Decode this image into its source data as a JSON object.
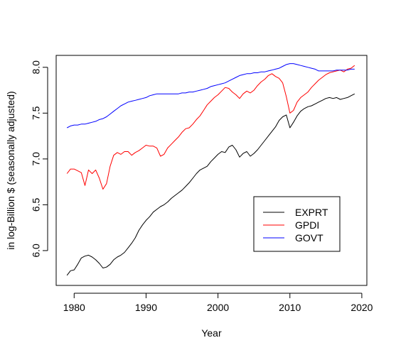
{
  "chart_data": {
    "type": "line",
    "xlabel": "Year",
    "ylabel": "in log-Billion $ (seasonally adjusted)",
    "xlim": [
      1977.5,
      2020.7
    ],
    "ylim": [
      5.62,
      8.13
    ],
    "x_ticks": [
      1980,
      1990,
      2000,
      2010,
      2020
    ],
    "y_ticks": [
      6.0,
      6.5,
      7.0,
      7.5,
      8.0
    ],
    "x_tick_labels": [
      "1980",
      "1990",
      "2000",
      "2010",
      "2020"
    ],
    "y_tick_labels": [
      "6.0",
      "6.5",
      "7.0",
      "7.5",
      "8.0"
    ],
    "grid": false,
    "legend_position": "bottom-right",
    "series": [
      {
        "name": "EXPRT",
        "color": "#000000",
        "points": [
          [
            1979.0,
            5.73
          ],
          [
            1979.5,
            5.78
          ],
          [
            1980.0,
            5.79
          ],
          [
            1980.5,
            5.85
          ],
          [
            1981.0,
            5.92
          ],
          [
            1981.5,
            5.94
          ],
          [
            1982.0,
            5.95
          ],
          [
            1982.5,
            5.93
          ],
          [
            1983.0,
            5.9
          ],
          [
            1983.5,
            5.86
          ],
          [
            1984.0,
            5.81
          ],
          [
            1984.5,
            5.82
          ],
          [
            1985.0,
            5.85
          ],
          [
            1985.5,
            5.9
          ],
          [
            1986.0,
            5.93
          ],
          [
            1986.5,
            5.95
          ],
          [
            1987.0,
            5.98
          ],
          [
            1987.5,
            6.03
          ],
          [
            1988.0,
            6.08
          ],
          [
            1988.5,
            6.14
          ],
          [
            1989.0,
            6.22
          ],
          [
            1989.5,
            6.28
          ],
          [
            1990.0,
            6.33
          ],
          [
            1990.5,
            6.37
          ],
          [
            1991.0,
            6.42
          ],
          [
            1991.5,
            6.45
          ],
          [
            1992.0,
            6.48
          ],
          [
            1992.5,
            6.5
          ],
          [
            1993.0,
            6.53
          ],
          [
            1993.5,
            6.57
          ],
          [
            1994.0,
            6.6
          ],
          [
            1994.5,
            6.63
          ],
          [
            1995.0,
            6.66
          ],
          [
            1995.5,
            6.7
          ],
          [
            1996.0,
            6.74
          ],
          [
            1996.5,
            6.79
          ],
          [
            1997.0,
            6.84
          ],
          [
            1997.5,
            6.88
          ],
          [
            1998.0,
            6.9
          ],
          [
            1998.5,
            6.92
          ],
          [
            1999.0,
            6.97
          ],
          [
            1999.5,
            7.01
          ],
          [
            2000.0,
            7.05
          ],
          [
            2000.5,
            7.08
          ],
          [
            2001.0,
            7.07
          ],
          [
            2001.5,
            7.13
          ],
          [
            2002.0,
            7.15
          ],
          [
            2002.5,
            7.1
          ],
          [
            2003.0,
            7.02
          ],
          [
            2003.5,
            7.06
          ],
          [
            2004.0,
            7.08
          ],
          [
            2004.5,
            7.03
          ],
          [
            2005.0,
            7.06
          ],
          [
            2005.5,
            7.1
          ],
          [
            2006.0,
            7.15
          ],
          [
            2006.5,
            7.2
          ],
          [
            2007.0,
            7.25
          ],
          [
            2007.5,
            7.3
          ],
          [
            2008.0,
            7.35
          ],
          [
            2008.5,
            7.42
          ],
          [
            2009.0,
            7.46
          ],
          [
            2009.5,
            7.48
          ],
          [
            2010.0,
            7.34
          ],
          [
            2010.5,
            7.4
          ],
          [
            2011.0,
            7.47
          ],
          [
            2011.5,
            7.52
          ],
          [
            2012.0,
            7.55
          ],
          [
            2012.5,
            7.57
          ],
          [
            2013.0,
            7.58
          ],
          [
            2013.5,
            7.6
          ],
          [
            2014.0,
            7.62
          ],
          [
            2014.5,
            7.64
          ],
          [
            2015.0,
            7.66
          ],
          [
            2015.5,
            7.67
          ],
          [
            2016.0,
            7.66
          ],
          [
            2016.5,
            7.67
          ],
          [
            2017.0,
            7.65
          ],
          [
            2017.5,
            7.66
          ],
          [
            2018.0,
            7.67
          ],
          [
            2018.5,
            7.69
          ],
          [
            2019.0,
            7.71
          ]
        ]
      },
      {
        "name": "GPDI",
        "color": "#ff0000",
        "points": [
          [
            1979.0,
            6.84
          ],
          [
            1979.5,
            6.89
          ],
          [
            1980.0,
            6.89
          ],
          [
            1980.5,
            6.87
          ],
          [
            1981.0,
            6.85
          ],
          [
            1981.5,
            6.71
          ],
          [
            1982.0,
            6.88
          ],
          [
            1982.5,
            6.84
          ],
          [
            1983.0,
            6.88
          ],
          [
            1983.5,
            6.79
          ],
          [
            1984.0,
            6.67
          ],
          [
            1984.5,
            6.73
          ],
          [
            1985.0,
            6.92
          ],
          [
            1985.5,
            7.04
          ],
          [
            1986.0,
            7.07
          ],
          [
            1986.5,
            7.05
          ],
          [
            1987.0,
            7.08
          ],
          [
            1987.5,
            7.08
          ],
          [
            1988.0,
            7.04
          ],
          [
            1988.5,
            7.07
          ],
          [
            1989.0,
            7.09
          ],
          [
            1989.5,
            7.12
          ],
          [
            1990.0,
            7.15
          ],
          [
            1990.5,
            7.14
          ],
          [
            1991.0,
            7.14
          ],
          [
            1991.5,
            7.12
          ],
          [
            1992.0,
            7.03
          ],
          [
            1992.5,
            7.05
          ],
          [
            1993.0,
            7.12
          ],
          [
            1993.5,
            7.16
          ],
          [
            1994.0,
            7.2
          ],
          [
            1994.5,
            7.24
          ],
          [
            1995.0,
            7.29
          ],
          [
            1995.5,
            7.33
          ],
          [
            1996.0,
            7.34
          ],
          [
            1996.5,
            7.38
          ],
          [
            1997.0,
            7.43
          ],
          [
            1997.5,
            7.47
          ],
          [
            1998.0,
            7.53
          ],
          [
            1998.5,
            7.59
          ],
          [
            1999.0,
            7.63
          ],
          [
            1999.5,
            7.67
          ],
          [
            2000.0,
            7.7
          ],
          [
            2000.5,
            7.74
          ],
          [
            2001.0,
            7.78
          ],
          [
            2001.5,
            7.77
          ],
          [
            2002.0,
            7.73
          ],
          [
            2002.5,
            7.7
          ],
          [
            2003.0,
            7.66
          ],
          [
            2003.5,
            7.71
          ],
          [
            2004.0,
            7.74
          ],
          [
            2004.5,
            7.72
          ],
          [
            2005.0,
            7.75
          ],
          [
            2005.5,
            7.8
          ],
          [
            2006.0,
            7.84
          ],
          [
            2006.5,
            7.87
          ],
          [
            2007.0,
            7.91
          ],
          [
            2007.5,
            7.93
          ],
          [
            2008.0,
            7.9
          ],
          [
            2008.5,
            7.88
          ],
          [
            2009.0,
            7.83
          ],
          [
            2009.5,
            7.68
          ],
          [
            2010.0,
            7.5
          ],
          [
            2010.5,
            7.53
          ],
          [
            2011.0,
            7.62
          ],
          [
            2011.5,
            7.67
          ],
          [
            2012.0,
            7.7
          ],
          [
            2012.5,
            7.73
          ],
          [
            2013.0,
            7.78
          ],
          [
            2013.5,
            7.82
          ],
          [
            2014.0,
            7.86
          ],
          [
            2014.5,
            7.89
          ],
          [
            2015.0,
            7.92
          ],
          [
            2015.5,
            7.94
          ],
          [
            2016.0,
            7.95
          ],
          [
            2016.5,
            7.96
          ],
          [
            2017.0,
            7.97
          ],
          [
            2017.5,
            7.95
          ],
          [
            2018.0,
            7.98
          ],
          [
            2018.5,
            7.99
          ],
          [
            2019.0,
            8.02
          ]
        ]
      },
      {
        "name": "GOVT",
        "color": "#0000ff",
        "points": [
          [
            1979.0,
            7.34
          ],
          [
            1979.5,
            7.36
          ],
          [
            1980.0,
            7.37
          ],
          [
            1980.5,
            7.37
          ],
          [
            1981.0,
            7.38
          ],
          [
            1981.5,
            7.38
          ],
          [
            1982.0,
            7.39
          ],
          [
            1982.5,
            7.4
          ],
          [
            1983.0,
            7.41
          ],
          [
            1983.5,
            7.43
          ],
          [
            1984.0,
            7.44
          ],
          [
            1984.5,
            7.46
          ],
          [
            1985.0,
            7.49
          ],
          [
            1985.5,
            7.52
          ],
          [
            1986.0,
            7.55
          ],
          [
            1986.5,
            7.58
          ],
          [
            1987.0,
            7.6
          ],
          [
            1987.5,
            7.62
          ],
          [
            1988.0,
            7.63
          ],
          [
            1988.5,
            7.64
          ],
          [
            1989.0,
            7.65
          ],
          [
            1989.5,
            7.66
          ],
          [
            1990.0,
            7.67
          ],
          [
            1990.5,
            7.69
          ],
          [
            1991.0,
            7.7
          ],
          [
            1991.5,
            7.71
          ],
          [
            1992.0,
            7.71
          ],
          [
            1992.5,
            7.71
          ],
          [
            1993.0,
            7.71
          ],
          [
            1993.5,
            7.71
          ],
          [
            1994.0,
            7.71
          ],
          [
            1994.5,
            7.71
          ],
          [
            1995.0,
            7.72
          ],
          [
            1995.5,
            7.72
          ],
          [
            1996.0,
            7.73
          ],
          [
            1996.5,
            7.73
          ],
          [
            1997.0,
            7.74
          ],
          [
            1997.5,
            7.75
          ],
          [
            1998.0,
            7.76
          ],
          [
            1998.5,
            7.77
          ],
          [
            1999.0,
            7.79
          ],
          [
            1999.5,
            7.8
          ],
          [
            2000.0,
            7.81
          ],
          [
            2000.5,
            7.82
          ],
          [
            2001.0,
            7.83
          ],
          [
            2001.5,
            7.85
          ],
          [
            2002.0,
            7.87
          ],
          [
            2002.5,
            7.89
          ],
          [
            2003.0,
            7.91
          ],
          [
            2003.5,
            7.92
          ],
          [
            2004.0,
            7.93
          ],
          [
            2004.5,
            7.93
          ],
          [
            2005.0,
            7.94
          ],
          [
            2005.5,
            7.94
          ],
          [
            2006.0,
            7.95
          ],
          [
            2006.5,
            7.95
          ],
          [
            2007.0,
            7.96
          ],
          [
            2007.5,
            7.97
          ],
          [
            2008.0,
            7.98
          ],
          [
            2008.5,
            7.99
          ],
          [
            2009.0,
            8.01
          ],
          [
            2009.5,
            8.03
          ],
          [
            2010.0,
            8.04
          ],
          [
            2010.5,
            8.04
          ],
          [
            2011.0,
            8.03
          ],
          [
            2011.5,
            8.02
          ],
          [
            2012.0,
            8.01
          ],
          [
            2012.5,
            8.0
          ],
          [
            2013.0,
            7.99
          ],
          [
            2013.5,
            7.98
          ],
          [
            2014.0,
            7.96
          ],
          [
            2014.5,
            7.96
          ],
          [
            2015.0,
            7.96
          ],
          [
            2015.5,
            7.96
          ],
          [
            2016.0,
            7.96
          ],
          [
            2016.5,
            7.97
          ],
          [
            2017.0,
            7.97
          ],
          [
            2017.5,
            7.97
          ],
          [
            2018.0,
            7.97
          ],
          [
            2018.5,
            7.98
          ],
          [
            2019.0,
            7.98
          ]
        ]
      }
    ]
  }
}
